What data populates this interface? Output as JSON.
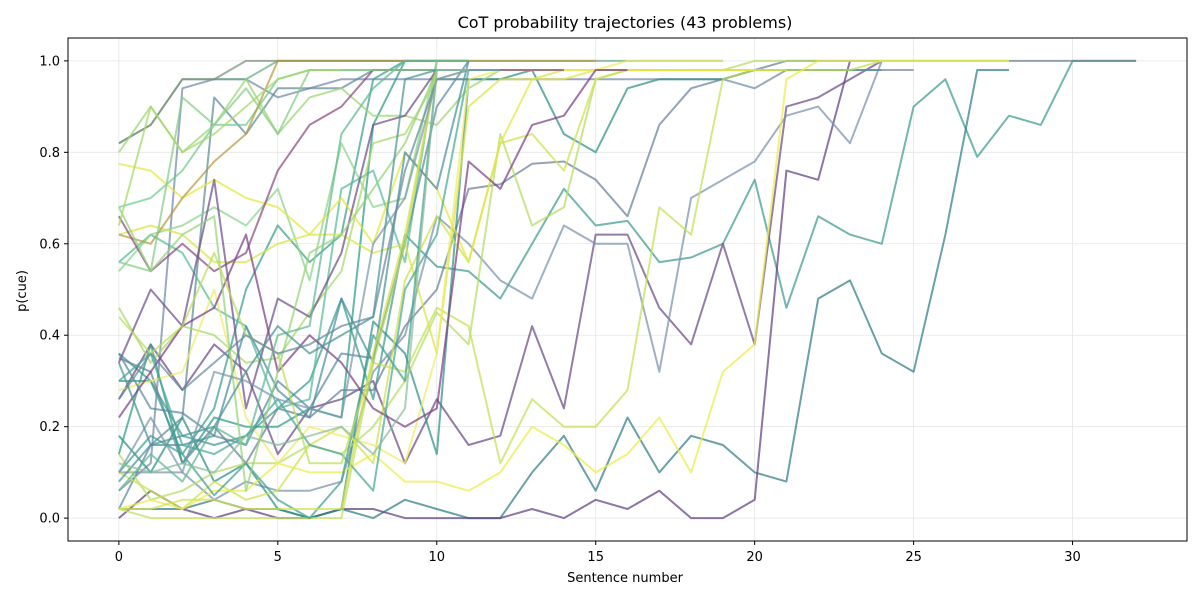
{
  "chart_data": {
    "type": "line",
    "title": "CoT probability trajectories (43 problems)",
    "xlabel": "Sentence number",
    "ylabel": "p(cue)",
    "xlim": [
      -1.6,
      33.6
    ],
    "ylim": [
      -0.05,
      1.05
    ],
    "x_ticks": [
      0,
      5,
      10,
      15,
      20,
      25,
      30
    ],
    "y_ticks": [
      0.0,
      0.2,
      0.4,
      0.6,
      0.8,
      1.0
    ],
    "grid": true,
    "legend": "none",
    "series": [
      {
        "color": "#3b9a8f",
        "values": [
          0.36,
          0.3,
          0.18,
          0.16,
          0.18,
          0.24,
          0.3,
          0.48,
          0.26,
          0.62,
          0.55,
          0.54,
          0.48,
          0.6,
          0.72,
          0.64,
          0.65,
          0.56,
          0.57,
          0.6,
          0.74,
          0.46,
          0.66,
          0.62,
          0.6,
          0.9,
          0.96,
          0.79,
          0.88,
          0.86,
          1.0,
          1.0,
          1.0
        ]
      },
      {
        "color": "#2e7d86",
        "values": [
          0.02,
          0.02,
          0.02,
          0.04,
          0.02,
          0.02,
          0.0,
          0.02,
          0.0,
          0.04,
          0.02,
          0.0,
          0.0,
          0.1,
          0.18,
          0.06,
          0.22,
          0.1,
          0.18,
          0.16,
          0.1,
          0.08,
          0.48,
          0.52,
          0.36,
          0.32,
          0.62,
          0.98,
          0.98
        ]
      },
      {
        "color": "#6b4a86",
        "values": [
          0.26,
          0.38,
          0.28,
          0.38,
          0.32,
          0.14,
          0.24,
          0.26,
          0.3,
          0.12,
          0.26,
          0.16,
          0.18,
          0.42,
          0.24,
          0.62,
          0.62,
          0.46,
          0.38,
          0.6,
          0.38,
          0.9,
          0.92,
          0.96,
          1.0
        ]
      },
      {
        "color": "#5f4082",
        "values": [
          0.0,
          0.06,
          0.02,
          0.0,
          0.02,
          0.0,
          0.0,
          0.02,
          0.02,
          0.0,
          0.0,
          0.0,
          0.0,
          0.02,
          0.0,
          0.04,
          0.02,
          0.06,
          0.0,
          0.0,
          0.04,
          0.76,
          0.74,
          1.0
        ]
      },
      {
        "color": "#6a7f9a",
        "values": [
          0.35,
          0.32,
          0.12,
          0.2,
          0.12,
          0.24,
          0.22,
          0.28,
          0.28,
          0.42,
          0.5,
          0.72,
          0.73,
          0.775,
          0.78,
          0.74,
          0.66,
          0.86,
          0.94,
          0.96,
          0.98,
          1.0,
          1.0,
          1.0,
          1.0,
          1.0,
          1.0,
          1.0,
          1.0,
          1.0,
          1.0,
          1.0,
          1.0
        ]
      },
      {
        "color": "#7088a8",
        "values": [
          0.06,
          0.12,
          0.94,
          0.96,
          0.96,
          0.92,
          0.94,
          0.96,
          0.96,
          0.96,
          0.96,
          0.96,
          0.96,
          0.96,
          0.96,
          0.96,
          0.96,
          0.96,
          0.96,
          0.96,
          0.94,
          0.98,
          0.98,
          0.98,
          0.98,
          0.98
        ]
      },
      {
        "color": "#7a92ad",
        "values": [
          0.1,
          0.1,
          0.1,
          0.04,
          0.08,
          0.06,
          0.06,
          0.08,
          0.32,
          0.4,
          0.66,
          0.6,
          0.52,
          0.48,
          0.64,
          0.6,
          0.6,
          0.32,
          0.7,
          0.74,
          0.78,
          0.88,
          0.9,
          0.82,
          1.0
        ]
      },
      {
        "color": "#5e8a9a",
        "values": [
          0.02,
          0.16,
          0.22,
          0.92,
          0.84,
          0.94,
          0.94,
          0.94,
          0.98,
          0.98,
          0.98,
          0.98,
          0.98,
          0.98,
          0.98,
          0.98,
          0.98,
          0.98,
          0.98,
          0.98,
          0.98,
          0.98,
          0.98,
          0.98,
          0.98
        ]
      },
      {
        "color": "#2f8f86",
        "values": [
          0.18,
          0.1,
          0.22,
          0.08,
          0.12,
          0.02,
          0.0,
          0.02,
          0.43,
          0.36,
          0.14,
          0.96,
          0.96,
          0.98,
          0.84,
          0.8,
          0.94,
          0.96,
          0.96,
          0.96,
          0.98,
          0.98,
          0.98,
          0.98
        ]
      },
      {
        "color": "#66aa88",
        "values": [
          0.82,
          0.86,
          0.96,
          0.96,
          0.96,
          1.0,
          1.0,
          1.0,
          1.0,
          1.0,
          1.0,
          1.0,
          1.0,
          1.0,
          1.0,
          1.0,
          1.0,
          1.0,
          1.0,
          1.0
        ]
      },
      {
        "color": "#7a8f7a",
        "values": [
          0.82,
          0.86,
          0.96,
          0.96,
          1.0,
          1.0,
          1.0,
          1.0,
          1.0,
          1.0
        ]
      },
      {
        "color": "#3a9e8a",
        "values": [
          0.3,
          0.3,
          0.14,
          0.24,
          0.5,
          0.64,
          0.56,
          0.62,
          0.96,
          1.0,
          1.0,
          1.0
        ]
      },
      {
        "color": "#2a9c85",
        "values": [
          0.14,
          0.38,
          0.12,
          0.22,
          0.2,
          0.2,
          0.24,
          0.22,
          0.86,
          1.0,
          1.0,
          1.0
        ]
      },
      {
        "color": "#55bb99",
        "values": [
          0.56,
          0.62,
          0.58,
          0.46,
          0.42,
          0.24,
          0.26,
          0.72,
          0.76,
          0.56,
          1.0,
          1.0
        ]
      },
      {
        "color": "#70cc90",
        "values": [
          0.68,
          0.7,
          0.76,
          0.86,
          0.86,
          0.96,
          0.98,
          0.98,
          0.98,
          0.98,
          0.98
        ]
      },
      {
        "color": "#8ad48a",
        "values": [
          0.54,
          0.62,
          0.64,
          0.68,
          0.64,
          0.72,
          0.52,
          0.82,
          0.68,
          0.7,
          1.0,
          1.0
        ]
      },
      {
        "color": "#9bd673",
        "values": [
          0.8,
          0.9,
          0.8,
          0.86,
          0.96,
          0.84,
          0.92,
          0.94,
          0.88,
          0.88,
          0.86,
          0.94,
          0.98,
          0.98,
          0.98,
          0.98
        ]
      },
      {
        "color": "#a8d86a",
        "values": [
          0.46,
          0.34,
          0.42,
          0.4,
          0.34,
          0.35,
          0.45,
          0.54,
          0.82,
          0.84,
          0.96,
          0.98,
          0.98,
          0.98,
          0.98,
          0.98
        ]
      },
      {
        "color": "#b5dd60",
        "values": [
          0.14,
          0.04,
          0.06,
          0.1,
          0.12,
          0.12,
          0.16,
          0.14,
          0.2,
          0.3,
          0.45,
          0.38,
          0.84,
          0.64,
          0.68,
          0.96,
          0.98,
          0.98,
          0.98,
          0.98,
          1.0,
          1.0,
          1.0
        ]
      },
      {
        "color": "#c2e055",
        "values": [
          0.02,
          0.0,
          0.0,
          0.0,
          0.0,
          0.0,
          0.0,
          0.0,
          0.34,
          0.32,
          0.46,
          0.42,
          0.12,
          0.26,
          0.2,
          0.2,
          0.28,
          0.68,
          0.62,
          0.96,
          0.98,
          0.98,
          0.98,
          0.98,
          1.0,
          1.0,
          1.0,
          1.0,
          1.0
        ]
      },
      {
        "color": "#cde24d",
        "values": [
          0.1,
          0.06,
          0.02,
          0.08,
          0.04,
          0.06,
          0.16,
          0.2,
          0.12,
          0.52,
          0.66,
          0.56,
          0.82,
          0.84,
          0.76,
          0.96,
          0.98,
          0.98,
          0.98,
          0.98,
          0.98
        ]
      },
      {
        "color": "#d8e445",
        "values": [
          0.62,
          0.64,
          0.62,
          0.56,
          0.56,
          0.6,
          0.62,
          0.62,
          0.58,
          0.6,
          0.36,
          0.9,
          0.96,
          0.96,
          0.98,
          0.98,
          0.98,
          0.98,
          0.98,
          0.98,
          0.98,
          0.98
        ]
      },
      {
        "color": "#e4e640",
        "values": [
          0.775,
          0.76,
          0.7,
          0.74,
          0.7,
          0.68,
          0.62,
          0.7,
          0.6,
          0.8,
          0.72,
          0.56,
          0.82,
          0.96,
          0.96,
          0.98,
          0.98,
          0.98,
          0.98,
          0.98,
          0.98
        ]
      },
      {
        "color": "#eceb4a",
        "values": [
          0.02,
          0.04,
          0.02,
          0.06,
          0.06,
          0.12,
          0.1,
          0.1,
          0.14,
          0.08,
          0.08,
          0.06,
          0.1,
          0.2,
          0.16,
          0.1,
          0.14,
          0.22,
          0.1,
          0.32,
          0.38,
          0.96,
          1.0,
          1.0,
          1.0,
          1.0,
          1.0,
          1.0,
          1.0
        ]
      },
      {
        "color": "#f0ec6a",
        "values": [
          0.28,
          0.3,
          0.32,
          0.5,
          0.22,
          0.12,
          0.2,
          0.18,
          0.16,
          0.12,
          0.36,
          0.96,
          0.98,
          0.98,
          0.98,
          0.98,
          1.0,
          1.0,
          1.0,
          1.0
        ]
      },
      {
        "color": "#b89a3e",
        "values": [
          0.62,
          0.6,
          0.7,
          0.78,
          0.84,
          1.0,
          1.0,
          1.0,
          1.0,
          1.0,
          1.0,
          1.0,
          1.0,
          1.0,
          1.0,
          1.0
        ]
      },
      {
        "color": "#8a4a82",
        "values": [
          0.66,
          0.54,
          0.6,
          0.54,
          0.58,
          0.76,
          0.86,
          0.9,
          0.98,
          0.98,
          0.98,
          0.98,
          0.98,
          0.98,
          0.98
        ]
      },
      {
        "color": "#7b3f86",
        "values": [
          0.22,
          0.32,
          0.42,
          0.46,
          0.62,
          0.32,
          0.4,
          0.34,
          0.24,
          0.2,
          0.24,
          0.78,
          0.72,
          0.86,
          0.88,
          0.98,
          0.98
        ]
      },
      {
        "color": "#6d4d8a",
        "values": [
          0.34,
          0.5,
          0.42,
          0.74,
          0.24,
          0.48,
          0.44,
          0.58,
          0.86,
          0.88,
          0.98,
          0.98
        ]
      },
      {
        "color": "#5a8aa0",
        "values": [
          0.36,
          0.24,
          0.23,
          0.18,
          0.16,
          0.3,
          0.24,
          0.36,
          0.35,
          0.6,
          0.9,
          1.0
        ]
      },
      {
        "color": "#4a8fa0",
        "values": [
          0.08,
          0.16,
          0.16,
          0.18,
          0.42,
          0.28,
          0.22,
          0.48,
          0.34,
          0.8,
          0.72,
          1.0
        ]
      },
      {
        "color": "#3fa090",
        "values": [
          0.1,
          0.18,
          0.14,
          0.05,
          0.12,
          0.04,
          0.0,
          0.08,
          0.4,
          0.3,
          0.98,
          0.98,
          0.98
        ]
      },
      {
        "color": "#4aa898",
        "values": [
          0.3,
          0.36,
          0.16,
          0.14,
          0.18,
          0.26,
          0.16,
          0.14,
          0.06,
          0.5,
          0.62,
          0.98,
          0.98
        ]
      },
      {
        "color": "#60b890",
        "values": [
          0.06,
          0.14,
          0.08,
          0.2,
          0.16,
          0.4,
          0.42,
          0.84,
          0.94,
          1.0,
          1.0,
          1.0
        ]
      },
      {
        "color": "#84cc84",
        "values": [
          0.56,
          0.54,
          0.92,
          0.86,
          0.94,
          0.84,
          0.98,
          0.98,
          0.98,
          0.98,
          0.98
        ]
      },
      {
        "color": "#96d27a",
        "values": [
          0.68,
          0.54,
          0.62,
          0.66,
          0.06,
          0.32,
          0.58,
          0.62,
          0.72,
          0.82,
          0.98,
          0.98
        ]
      },
      {
        "color": "#a6d86c",
        "values": [
          0.64,
          0.9,
          0.8,
          0.84,
          0.9,
          0.96,
          0.98,
          0.98
        ]
      },
      {
        "color": "#bcdc5c",
        "values": [
          0.44,
          0.36,
          0.42,
          0.58,
          0.4,
          0.36,
          0.12,
          0.12,
          0.34,
          0.6,
          0.98,
          0.98
        ]
      },
      {
        "color": "#d2e24c",
        "values": [
          0.02,
          0.02,
          0.04,
          0.04,
          0.02,
          0.02,
          0.02,
          0.02,
          0.36,
          0.62,
          0.98,
          0.98
        ]
      },
      {
        "color": "#7c9aae",
        "values": [
          0.1,
          0.22,
          0.1,
          0.32,
          0.3,
          0.26,
          0.24,
          0.22,
          0.6,
          0.7,
          0.96,
          0.98,
          0.98
        ]
      },
      {
        "color": "#668a9c",
        "values": [
          0.26,
          0.36,
          0.28,
          0.34,
          0.4,
          0.36,
          0.38,
          0.42,
          0.44,
          0.76,
          0.96,
          0.96
        ]
      },
      {
        "color": "#4c9494",
        "values": [
          0.34,
          0.16,
          0.18,
          0.2,
          0.32,
          0.42,
          0.36,
          0.4,
          0.44,
          0.96,
          0.98,
          0.98
        ]
      },
      {
        "color": "#8cbc9c",
        "values": [
          0.12,
          0.1,
          0.12,
          0.1,
          0.18,
          0.16,
          0.18,
          0.2,
          0.14,
          0.24,
          0.98,
          0.98
        ]
      }
    ]
  }
}
